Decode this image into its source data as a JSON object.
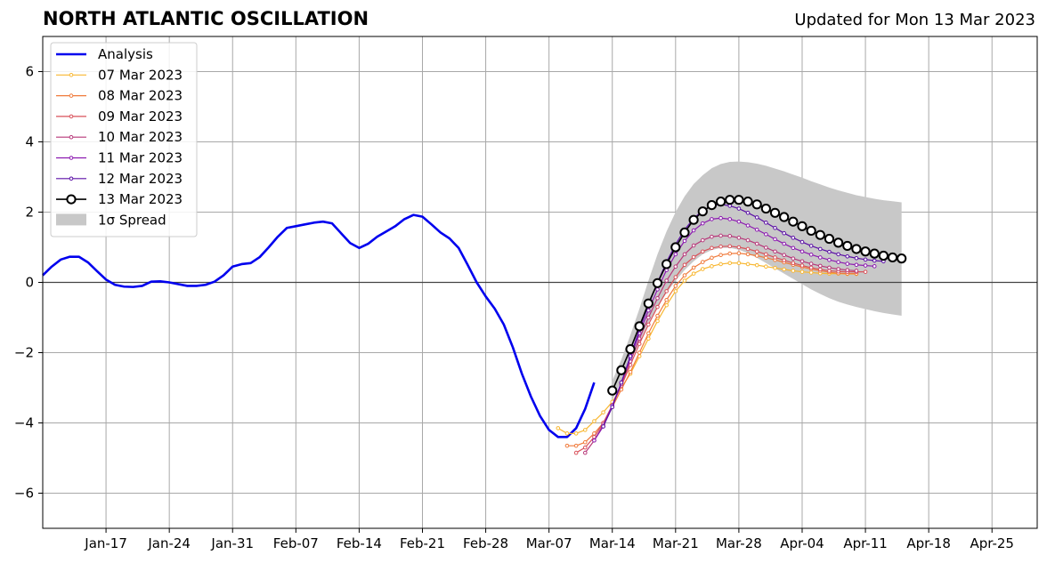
{
  "chart_data": {
    "type": "line",
    "title": "NORTH ATLANTIC OSCILLATION",
    "subtitle": "Updated for Mon 13 Mar 2023",
    "xlabel": "",
    "ylabel": "",
    "xlim": [
      "2023-01-10",
      "2023-04-30"
    ],
    "ylim": [
      -7,
      7
    ],
    "yticks": [
      -6,
      -4,
      -2,
      0,
      2,
      4,
      6
    ],
    "ytick_labels": [
      "−6",
      "−4",
      "−2",
      "0",
      "2",
      "4",
      "6"
    ],
    "xticks": [
      "2023-01-17",
      "2023-01-24",
      "2023-01-31",
      "2023-02-07",
      "2023-02-14",
      "2023-02-21",
      "2023-02-28",
      "2023-03-07",
      "2023-03-14",
      "2023-03-21",
      "2023-03-28",
      "2023-04-04",
      "2023-04-11",
      "2023-04-18",
      "2023-04-25"
    ],
    "xtick_labels": [
      "Jan-17",
      "Jan-24",
      "Jan-31",
      "Feb-07",
      "Feb-14",
      "Feb-21",
      "Feb-28",
      "Mar-07",
      "Mar-14",
      "Mar-21",
      "Mar-28",
      "Apr-04",
      "Apr-11",
      "Apr-18",
      "Apr-25"
    ],
    "grid": true,
    "legend_position": "top-left",
    "analysis": {
      "name": "Analysis",
      "color": "#0000ee",
      "points": [
        [
          "2023-01-10",
          0.2
        ],
        [
          "2023-01-11",
          0.45
        ],
        [
          "2023-01-12",
          0.65
        ],
        [
          "2023-01-13",
          0.73
        ],
        [
          "2023-01-14",
          0.73
        ],
        [
          "2023-01-15",
          0.57
        ],
        [
          "2023-01-16",
          0.32
        ],
        [
          "2023-01-17",
          0.08
        ],
        [
          "2023-01-18",
          -0.07
        ],
        [
          "2023-01-19",
          -0.12
        ],
        [
          "2023-01-20",
          -0.13
        ],
        [
          "2023-01-21",
          -0.1
        ],
        [
          "2023-01-22",
          0.02
        ],
        [
          "2023-01-23",
          0.03
        ],
        [
          "2023-01-24",
          0.0
        ],
        [
          "2023-01-25",
          -0.05
        ],
        [
          "2023-01-26",
          -0.1
        ],
        [
          "2023-01-27",
          -0.1
        ],
        [
          "2023-01-28",
          -0.07
        ],
        [
          "2023-01-29",
          0.02
        ],
        [
          "2023-01-30",
          0.2
        ],
        [
          "2023-01-31",
          0.45
        ],
        [
          "2023-02-01",
          0.52
        ],
        [
          "2023-02-02",
          0.55
        ],
        [
          "2023-02-03",
          0.72
        ],
        [
          "2023-02-04",
          1.0
        ],
        [
          "2023-02-05",
          1.3
        ],
        [
          "2023-02-06",
          1.55
        ],
        [
          "2023-02-07",
          1.6
        ],
        [
          "2023-02-08",
          1.65
        ],
        [
          "2023-02-09",
          1.7
        ],
        [
          "2023-02-10",
          1.73
        ],
        [
          "2023-02-11",
          1.68
        ],
        [
          "2023-02-12",
          1.4
        ],
        [
          "2023-02-13",
          1.12
        ],
        [
          "2023-02-14",
          0.98
        ],
        [
          "2023-02-15",
          1.1
        ],
        [
          "2023-02-16",
          1.3
        ],
        [
          "2023-02-17",
          1.45
        ],
        [
          "2023-02-18",
          1.6
        ],
        [
          "2023-02-19",
          1.8
        ],
        [
          "2023-02-20",
          1.92
        ],
        [
          "2023-02-21",
          1.87
        ],
        [
          "2023-02-22",
          1.65
        ],
        [
          "2023-02-23",
          1.42
        ],
        [
          "2023-02-24",
          1.25
        ],
        [
          "2023-02-25",
          0.98
        ],
        [
          "2023-02-26",
          0.5
        ],
        [
          "2023-02-27",
          0.0
        ],
        [
          "2023-02-28",
          -0.4
        ],
        [
          "2023-03-01",
          -0.75
        ],
        [
          "2023-03-02",
          -1.2
        ],
        [
          "2023-03-03",
          -1.85
        ],
        [
          "2023-03-04",
          -2.6
        ],
        [
          "2023-03-05",
          -3.25
        ],
        [
          "2023-03-06",
          -3.8
        ],
        [
          "2023-03-07",
          -4.2
        ],
        [
          "2023-03-08",
          -4.4
        ],
        [
          "2023-03-09",
          -4.4
        ],
        [
          "2023-03-10",
          -4.15
        ],
        [
          "2023-03-11",
          -3.6
        ],
        [
          "2023-03-12",
          -2.85
        ]
      ]
    },
    "forecasts": [
      {
        "name": "07 Mar 2023",
        "color": "#f8b731",
        "start": "2023-03-08",
        "values": [
          -4.15,
          -4.3,
          -4.3,
          -4.2,
          -3.95,
          -3.7,
          -3.4,
          -3.0,
          -2.6,
          -2.1,
          -1.6,
          -1.1,
          -0.65,
          -0.25,
          0.05,
          0.25,
          0.38,
          0.46,
          0.52,
          0.55,
          0.55,
          0.52,
          0.49,
          0.45,
          0.41,
          0.37,
          0.33,
          0.3,
          0.28,
          0.26,
          0.25,
          0.25,
          0.24,
          0.24
        ]
      },
      {
        "name": "08 Mar 2023",
        "color": "#f07a3b",
        "start": "2023-03-09",
        "values": [
          -4.65,
          -4.65,
          -4.55,
          -4.3,
          -4.0,
          -3.55,
          -3.05,
          -2.55,
          -2.0,
          -1.45,
          -0.95,
          -0.5,
          -0.1,
          0.2,
          0.42,
          0.58,
          0.7,
          0.78,
          0.82,
          0.83,
          0.8,
          0.76,
          0.7,
          0.64,
          0.57,
          0.5,
          0.44,
          0.38,
          0.33,
          0.29,
          0.26,
          0.25,
          0.25
        ]
      },
      {
        "name": "09 Mar 2023",
        "color": "#d9515a",
        "start": "2023-03-10",
        "values": [
          -4.85,
          -4.7,
          -4.4,
          -4.0,
          -3.5,
          -2.95,
          -2.35,
          -1.75,
          -1.2,
          -0.7,
          -0.25,
          0.15,
          0.5,
          0.72,
          0.88,
          0.98,
          1.02,
          1.03,
          1.0,
          0.95,
          0.88,
          0.8,
          0.71,
          0.63,
          0.55,
          0.48,
          0.42,
          0.37,
          0.33,
          0.31,
          0.3,
          0.3,
          0.3
        ]
      },
      {
        "name": "10 Mar 2023",
        "color": "#b73779",
        "start": "2023-03-11",
        "values": [
          -4.85,
          -4.5,
          -4.05,
          -3.5,
          -2.9,
          -2.25,
          -1.6,
          -1.0,
          -0.45,
          0.05,
          0.45,
          0.8,
          1.05,
          1.2,
          1.3,
          1.33,
          1.32,
          1.27,
          1.2,
          1.1,
          0.99,
          0.88,
          0.78,
          0.68,
          0.6,
          0.53,
          0.47,
          0.42,
          0.38,
          0.35,
          0.33
        ]
      },
      {
        "name": "11 Mar 2023",
        "color": "#8c1ab0",
        "start": "2023-03-12",
        "values": [
          -4.5,
          -4.1,
          -3.5,
          -2.85,
          -2.15,
          -1.45,
          -0.8,
          -0.2,
          0.35,
          0.8,
          1.18,
          1.48,
          1.68,
          1.8,
          1.83,
          1.8,
          1.73,
          1.62,
          1.5,
          1.37,
          1.23,
          1.1,
          0.98,
          0.88,
          0.79,
          0.71,
          0.64,
          0.58,
          0.53,
          0.5,
          0.48,
          0.46
        ]
      },
      {
        "name": "12 Mar 2023",
        "color": "#5b0fa6",
        "start": "2023-03-13",
        "values": [
          -4.1,
          -3.55,
          -2.85,
          -2.1,
          -1.35,
          -0.65,
          0.0,
          0.58,
          1.08,
          1.5,
          1.82,
          2.05,
          2.18,
          2.22,
          2.18,
          2.1,
          1.98,
          1.85,
          1.7,
          1.55,
          1.4,
          1.27,
          1.15,
          1.04,
          0.95,
          0.87,
          0.8,
          0.74,
          0.69,
          0.65,
          0.62,
          0.6
        ]
      },
      {
        "name": "13 Mar 2023",
        "color": "#000000",
        "start": "2023-03-14",
        "values": [
          -3.08,
          -2.5,
          -1.9,
          -1.25,
          -0.6,
          -0.02,
          0.52,
          1.0,
          1.42,
          1.78,
          2.02,
          2.2,
          2.3,
          2.35,
          2.35,
          2.3,
          2.22,
          2.1,
          1.98,
          1.86,
          1.73,
          1.6,
          1.47,
          1.35,
          1.24,
          1.13,
          1.04,
          0.95,
          0.88,
          0.82,
          0.76,
          0.71,
          0.68
        ]
      }
    ],
    "spread": {
      "name": "1σ Spread",
      "color": "#c8c8c8",
      "start": "2023-03-14",
      "upper": [
        -2.8,
        -2.2,
        -1.5,
        -0.75,
        0.05,
        0.8,
        1.45,
        2.0,
        2.45,
        2.8,
        3.05,
        3.25,
        3.37,
        3.43,
        3.44,
        3.42,
        3.38,
        3.32,
        3.24,
        3.16,
        3.07,
        2.98,
        2.88,
        2.79,
        2.7,
        2.62,
        2.55,
        2.48,
        2.43,
        2.38,
        2.34,
        2.31,
        2.28
      ],
      "lower": [
        -3.35,
        -2.8,
        -2.25,
        -1.7,
        -1.15,
        -0.7,
        -0.3,
        0.05,
        0.35,
        0.6,
        0.8,
        0.92,
        0.98,
        0.98,
        0.93,
        0.83,
        0.7,
        0.55,
        0.4,
        0.25,
        0.1,
        -0.05,
        -0.2,
        -0.33,
        -0.45,
        -0.55,
        -0.63,
        -0.7,
        -0.76,
        -0.82,
        -0.87,
        -0.91,
        -0.95
      ]
    }
  }
}
